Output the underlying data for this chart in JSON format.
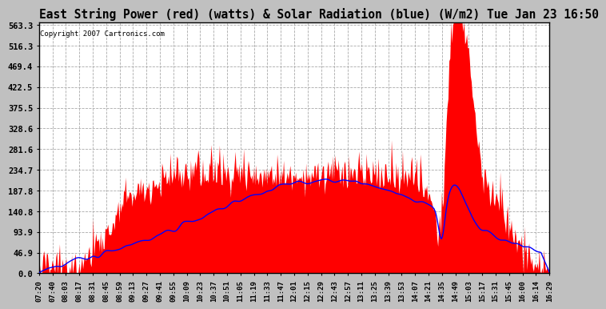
{
  "title": "East String Power (red) (watts) & Solar Radiation (blue) (W/m2) Tue Jan 23 16:50",
  "copyright": "Copyright 2007 Cartronics.com",
  "background_color": "#c0c0c0",
  "plot_bg_color": "#ffffff",
  "yticks": [
    0.0,
    46.9,
    93.9,
    140.8,
    187.8,
    234.7,
    281.6,
    328.6,
    375.5,
    422.5,
    469.4,
    516.3,
    563.3
  ],
  "ymax": 563.3,
  "ymin": 0.0,
  "title_fontsize": 10.5,
  "xlabel_fontsize": 6.5,
  "ylabel_fontsize": 7.5,
  "red_color": "#ff0000",
  "blue_color": "#0000ff",
  "x_labels": [
    "07:20",
    "07:40",
    "08:03",
    "08:17",
    "08:31",
    "08:45",
    "08:59",
    "09:13",
    "09:27",
    "09:41",
    "09:55",
    "10:09",
    "10:23",
    "10:37",
    "10:51",
    "11:05",
    "11:19",
    "11:33",
    "11:47",
    "12:01",
    "12:15",
    "12:29",
    "12:43",
    "12:57",
    "13:11",
    "13:25",
    "13:39",
    "13:53",
    "14:07",
    "14:21",
    "14:35",
    "14:49",
    "15:03",
    "15:17",
    "15:31",
    "15:45",
    "16:00",
    "16:14",
    "16:29"
  ]
}
